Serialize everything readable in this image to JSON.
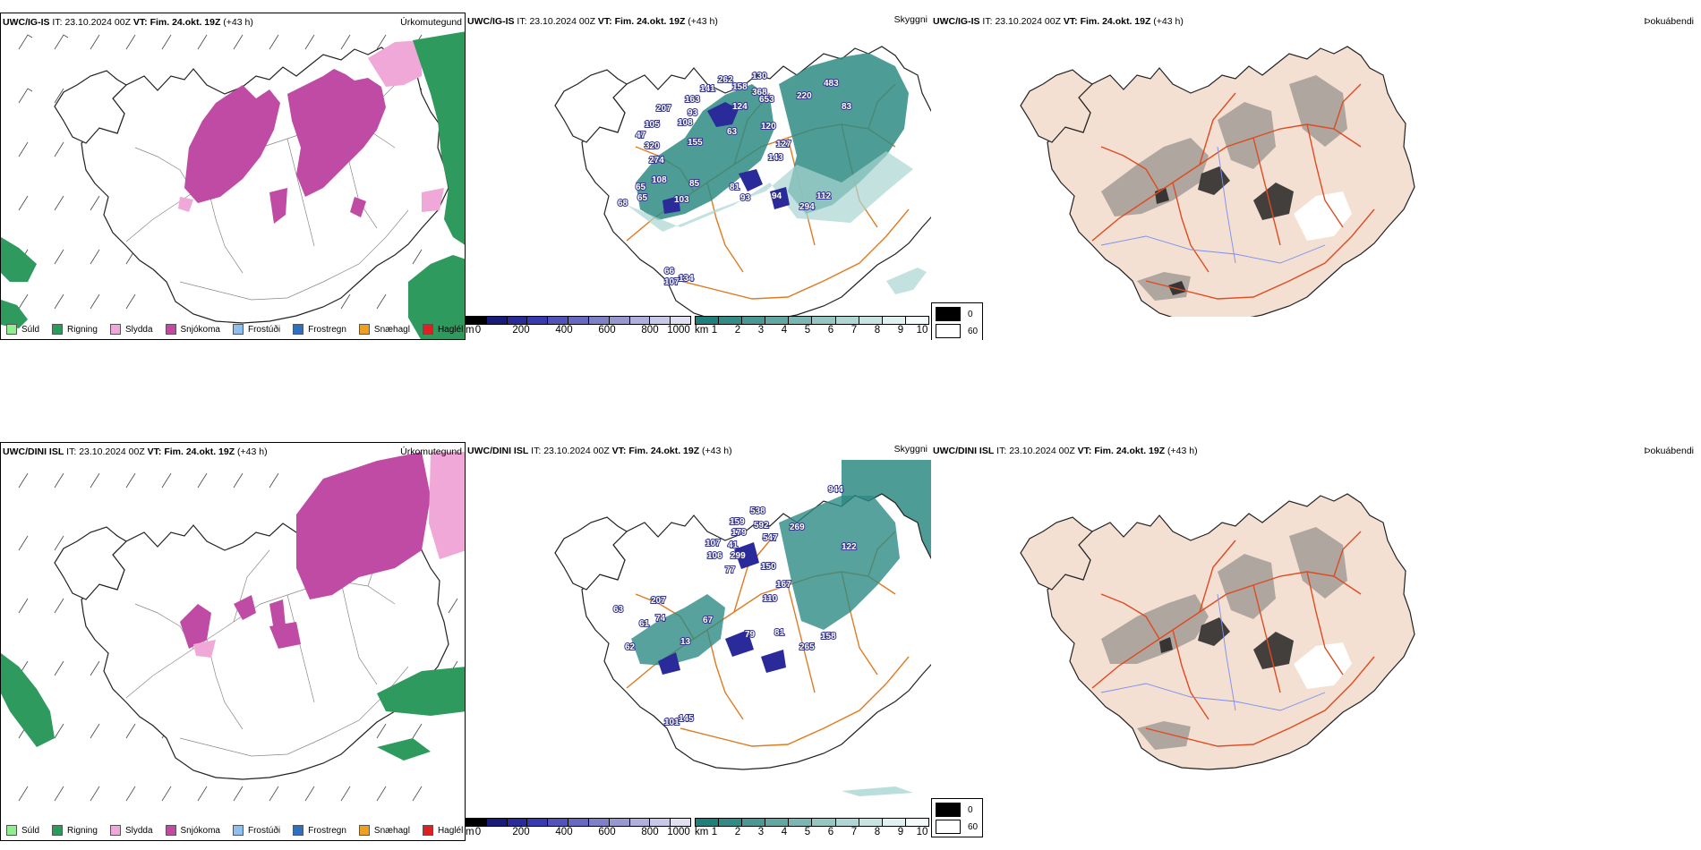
{
  "rows": [
    {
      "model": "UWC/IG-IS",
      "it_label": "IT:",
      "it_value": "23.10.2024 00Z",
      "vt_label": "VT:",
      "vt_value": "Fim. 24.okt. 19Z",
      "lead": "(+43 h)",
      "panels": {
        "precip": "Úrkomutegund",
        "cloud": "Skyggni",
        "fog": "Þokuábendi"
      },
      "height_labels": [
        "207",
        "163",
        "93",
        "141",
        "262",
        "158",
        "130",
        "368",
        "653",
        "220",
        "483",
        "124",
        "63",
        "83",
        "105",
        "108",
        "155",
        "47",
        "320",
        "120",
        "127",
        "274",
        "143",
        "65",
        "108",
        "85",
        "81",
        "93",
        "94",
        "112",
        "65",
        "68",
        "103",
        "294",
        "107",
        "134",
        "66"
      ]
    },
    {
      "model": "UWC/DINI ISL",
      "it_label": "IT:",
      "it_value": "23.10.2024 00Z",
      "vt_label": "VT:",
      "vt_value": "Fim. 24.okt. 19Z",
      "lead": "(+43 h)",
      "panels": {
        "precip": "Úrkomutegund",
        "cloud": "Skyggni",
        "fog": "Þokuábendi"
      },
      "height_labels": [
        "944",
        "538",
        "159",
        "592",
        "179",
        "269",
        "547",
        "107",
        "106",
        "41",
        "299",
        "122",
        "150",
        "77",
        "167",
        "207",
        "110",
        "63",
        "74",
        "67",
        "79",
        "81",
        "158",
        "61",
        "62",
        "265",
        "101",
        "13",
        "145"
      ]
    }
  ],
  "precip_legend": [
    {
      "label": "Súld",
      "color": "#90ee90"
    },
    {
      "label": "Rigning",
      "color": "#2e9a5e"
    },
    {
      "label": "Slydda",
      "color": "#f0a8d8"
    },
    {
      "label": "Snjókoma",
      "color": "#bf4ba4"
    },
    {
      "label": "Frostúði",
      "color": "#8cc0ee"
    },
    {
      "label": "Frostregn",
      "color": "#2f6fc0"
    },
    {
      "label": "Snæhagl",
      "color": "#f0a020"
    },
    {
      "label": "Haglél",
      "color": "#e02020"
    }
  ],
  "cloud_base_bar": {
    "unit": "m",
    "ticks": [
      "0",
      "200",
      "400",
      "600",
      "800",
      "1000"
    ],
    "colors": [
      "#000000",
      "#1a1a78",
      "#2a2a9a",
      "#3a3ab0",
      "#5252b8",
      "#6868c0",
      "#8080c8",
      "#9898d0",
      "#b0b0dc",
      "#c8c8e8",
      "#e0e0f2"
    ]
  },
  "visibility_bar": {
    "unit": "km",
    "ticks": [
      "1",
      "2",
      "3",
      "4",
      "5",
      "6",
      "7",
      "8",
      "9",
      "10"
    ],
    "colors": [
      "#1f7f7a",
      "#338b86",
      "#4a9893",
      "#63a7a2",
      "#7cb6b2",
      "#96c6c2",
      "#b0d6d3",
      "#c8e4e2",
      "#e0f1f0",
      "#f4fbfa"
    ]
  },
  "fog_legend": {
    "high": "0",
    "low": "60"
  },
  "colors": {
    "coast": "#222222",
    "roads": "#e07a20",
    "rivers": "#7a8ef0",
    "land_fog": "#f3e0d2",
    "snow": "#bf4ba4",
    "sleet": "#f0a8d8",
    "rain": "#2e9a5e",
    "teal": "#2e8b84"
  }
}
